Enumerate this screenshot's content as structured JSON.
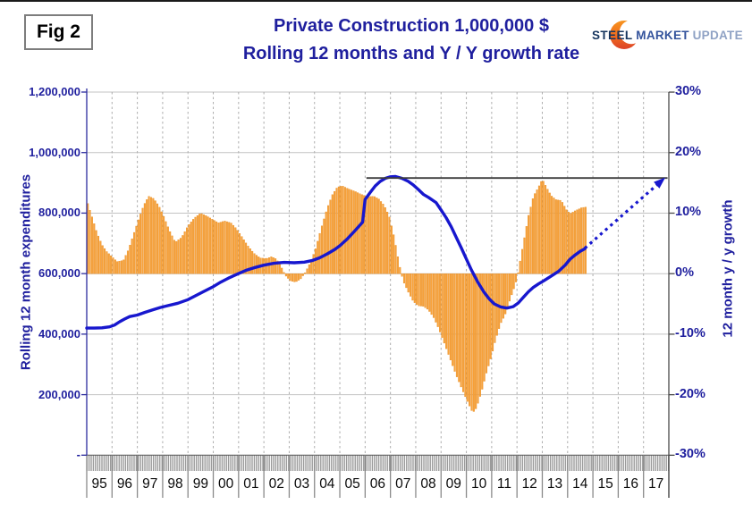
{
  "figure_label": "Fig 2",
  "header": {
    "title_line1": "Private Construction 1,000,000 $",
    "title_line2": "Rolling 12 months and Y / Y growth rate",
    "title_color": "#1F1F9E"
  },
  "logo": {
    "word1": "STEEL",
    "word2": "MARKET",
    "word3": "UPDATE",
    "crescent_top_color": "#F7941E",
    "crescent_bottom_color": "#DC4226"
  },
  "chart_data": {
    "type": "combo",
    "title": "Private Construction 1,000,000 $ — Rolling 12 months and Y / Y growth rate",
    "x_axis": {
      "years": [
        "95",
        "96",
        "97",
        "98",
        "99",
        "00",
        "01",
        "02",
        "03",
        "04",
        "05",
        "06",
        "07",
        "08",
        "09",
        "10",
        "11",
        "12",
        "13",
        "14",
        "15",
        "16",
        "17"
      ]
    },
    "left_axis": {
      "title": "Rolling 12 month expenditures",
      "min": 0,
      "max": 1200000,
      "tick_step": 200000,
      "tick_labels": [
        "1,200,000",
        "1,000,000",
        "800,000",
        "600,000",
        "400,000",
        "200,000",
        "-"
      ]
    },
    "right_axis": {
      "title": "12 month y / y growth",
      "min": -30,
      "max": 30,
      "tick_step": 10,
      "tick_labels": [
        "30%",
        "20%",
        "10%",
        "0%",
        "-10%",
        "-20%",
        "-30%"
      ]
    },
    "bar_series": {
      "name": "12 month y/y growth rate (%)",
      "axis": "right",
      "color": "#F8A33C",
      "edge_color": "#E68A1E",
      "start": 1995.04,
      "end": 2014.72,
      "anchors": [
        [
          1995.04,
          11.6
        ],
        [
          1995.2,
          9.5
        ],
        [
          1995.4,
          6.8
        ],
        [
          1995.6,
          4.8
        ],
        [
          1995.8,
          3.6
        ],
        [
          1996.0,
          2.8
        ],
        [
          1996.2,
          2.0
        ],
        [
          1996.45,
          2.2
        ],
        [
          1996.65,
          4.0
        ],
        [
          1996.85,
          6.5
        ],
        [
          1997.05,
          9.0
        ],
        [
          1997.25,
          11.3
        ],
        [
          1997.45,
          12.8
        ],
        [
          1997.65,
          12.4
        ],
        [
          1997.85,
          11.2
        ],
        [
          1998.05,
          9.4
        ],
        [
          1998.25,
          7.3
        ],
        [
          1998.5,
          5.2
        ],
        [
          1998.75,
          6.0
        ],
        [
          1999.0,
          7.9
        ],
        [
          1999.25,
          9.2
        ],
        [
          1999.5,
          10.0
        ],
        [
          1999.75,
          9.5
        ],
        [
          2000.0,
          8.9
        ],
        [
          2000.2,
          8.4
        ],
        [
          2000.45,
          8.7
        ],
        [
          2000.7,
          8.4
        ],
        [
          2000.9,
          7.5
        ],
        [
          2001.1,
          6.3
        ],
        [
          2001.35,
          4.7
        ],
        [
          2001.6,
          3.4
        ],
        [
          2001.85,
          2.6
        ],
        [
          2002.1,
          2.5
        ],
        [
          2002.3,
          2.8
        ],
        [
          2002.5,
          2.4
        ],
        [
          2002.7,
          1.0
        ],
        [
          2002.85,
          -0.3
        ],
        [
          2003.05,
          -1.2
        ],
        [
          2003.25,
          -1.4
        ],
        [
          2003.45,
          -0.9
        ],
        [
          2003.65,
          0.3
        ],
        [
          2003.85,
          2.0
        ],
        [
          2004.05,
          4.2
        ],
        [
          2004.25,
          7.3
        ],
        [
          2004.5,
          10.8
        ],
        [
          2004.7,
          13.0
        ],
        [
          2004.9,
          14.3
        ],
        [
          2005.1,
          14.5
        ],
        [
          2005.35,
          14.0
        ],
        [
          2005.6,
          13.6
        ],
        [
          2005.85,
          13.1
        ],
        [
          2006.1,
          12.7
        ],
        [
          2006.35,
          12.8
        ],
        [
          2006.55,
          12.3
        ],
        [
          2006.75,
          11.3
        ],
        [
          2006.95,
          9.5
        ],
        [
          2007.15,
          6.0
        ],
        [
          2007.35,
          1.5
        ],
        [
          2007.5,
          -1.2
        ],
        [
          2007.7,
          -3.0
        ],
        [
          2007.9,
          -4.6
        ],
        [
          2008.1,
          -5.3
        ],
        [
          2008.3,
          -5.4
        ],
        [
          2008.5,
          -6.0
        ],
        [
          2008.7,
          -7.2
        ],
        [
          2008.9,
          -9.0
        ],
        [
          2009.1,
          -11.2
        ],
        [
          2009.35,
          -14.0
        ],
        [
          2009.6,
          -16.8
        ],
        [
          2009.85,
          -19.3
        ],
        [
          2010.05,
          -21.2
        ],
        [
          2010.25,
          -23.0
        ],
        [
          2010.4,
          -22.2
        ],
        [
          2010.6,
          -19.5
        ],
        [
          2010.8,
          -16.3
        ],
        [
          2011.0,
          -13.5
        ],
        [
          2011.15,
          -11.0
        ],
        [
          2011.35,
          -8.3
        ],
        [
          2011.55,
          -6.6
        ],
        [
          2011.75,
          -4.0
        ],
        [
          2011.9,
          -2.2
        ],
        [
          2012.0,
          -0.8
        ],
        [
          2012.1,
          1.5
        ],
        [
          2012.25,
          5.0
        ],
        [
          2012.45,
          9.5
        ],
        [
          2012.65,
          12.8
        ],
        [
          2012.85,
          14.3
        ],
        [
          2013.0,
          15.6
        ],
        [
          2013.15,
          14.4
        ],
        [
          2013.35,
          12.9
        ],
        [
          2013.55,
          12.2
        ],
        [
          2013.75,
          12.1
        ],
        [
          2013.95,
          10.6
        ],
        [
          2014.1,
          9.9
        ],
        [
          2014.3,
          10.4
        ],
        [
          2014.55,
          10.9
        ],
        [
          2014.72,
          11.0
        ]
      ]
    },
    "line_series": {
      "name": "Rolling 12 month expenditures (1,000 $)",
      "axis": "left",
      "color": "#1717CE",
      "points": [
        [
          1995.0,
          420
        ],
        [
          1995.3,
          420
        ],
        [
          1995.6,
          421
        ],
        [
          1995.9,
          424
        ],
        [
          1996.1,
          430
        ],
        [
          1996.3,
          441
        ],
        [
          1996.5,
          450
        ],
        [
          1996.7,
          458
        ],
        [
          1997.0,
          463
        ],
        [
          1997.3,
          472
        ],
        [
          1997.6,
          480
        ],
        [
          1997.9,
          488
        ],
        [
          1998.2,
          494
        ],
        [
          1998.6,
          502
        ],
        [
          1999.0,
          514
        ],
        [
          1999.3,
          527
        ],
        [
          1999.6,
          540
        ],
        [
          2000.0,
          557
        ],
        [
          2000.3,
          572
        ],
        [
          2000.6,
          585
        ],
        [
          2001.0,
          600
        ],
        [
          2001.3,
          611
        ],
        [
          2001.6,
          619
        ],
        [
          2002.0,
          628
        ],
        [
          2002.4,
          634
        ],
        [
          2002.8,
          637
        ],
        [
          2003.2,
          636
        ],
        [
          2003.6,
          638
        ],
        [
          2003.9,
          643
        ],
        [
          2004.2,
          652
        ],
        [
          2004.5,
          665
        ],
        [
          2004.8,
          680
        ],
        [
          2005.0,
          692
        ],
        [
          2005.3,
          715
        ],
        [
          2005.6,
          742
        ],
        [
          2005.9,
          770
        ],
        [
          2006.0,
          845
        ],
        [
          2006.2,
          868
        ],
        [
          2006.4,
          890
        ],
        [
          2006.6,
          905
        ],
        [
          2006.8,
          915
        ],
        [
          2007.0,
          920
        ],
        [
          2007.2,
          921
        ],
        [
          2007.45,
          915
        ],
        [
          2007.7,
          905
        ],
        [
          2007.9,
          893
        ],
        [
          2008.1,
          878
        ],
        [
          2008.3,
          862
        ],
        [
          2008.5,
          852
        ],
        [
          2008.8,
          835
        ],
        [
          2009.0,
          810
        ],
        [
          2009.2,
          785
        ],
        [
          2009.4,
          755
        ],
        [
          2009.6,
          720
        ],
        [
          2009.8,
          685
        ],
        [
          2010.0,
          648
        ],
        [
          2010.2,
          612
        ],
        [
          2010.45,
          572
        ],
        [
          2010.7,
          538
        ],
        [
          2010.9,
          517
        ],
        [
          2011.1,
          500
        ],
        [
          2011.35,
          490
        ],
        [
          2011.6,
          486
        ],
        [
          2011.85,
          491
        ],
        [
          2012.05,
          503
        ],
        [
          2012.25,
          522
        ],
        [
          2012.45,
          540
        ],
        [
          2012.65,
          555
        ],
        [
          2012.85,
          566
        ],
        [
          2013.05,
          576
        ],
        [
          2013.35,
          592
        ],
        [
          2013.65,
          608
        ],
        [
          2013.9,
          628
        ],
        [
          2014.1,
          648
        ],
        [
          2014.3,
          662
        ],
        [
          2014.5,
          674
        ],
        [
          2014.68,
          682
        ]
      ],
      "note": "2005.9→2006.0 interpolated rise: 770→845 (steep growth through 2006)"
    },
    "annotations": {
      "target_line": {
        "pct": 15.8,
        "x_from_year": 2006.05,
        "x_to_year": 2017.95,
        "color": "#3D3D3D"
      },
      "forecast_arrow": {
        "from_year_pct": [
          2014.68,
          4.2
        ],
        "to_year_pct": [
          2017.62,
          15.0
        ],
        "style": "dotted",
        "color": "#1717CE"
      }
    },
    "layout": {
      "grid": true,
      "zero_pct_equals_left_value": 600000
    }
  }
}
